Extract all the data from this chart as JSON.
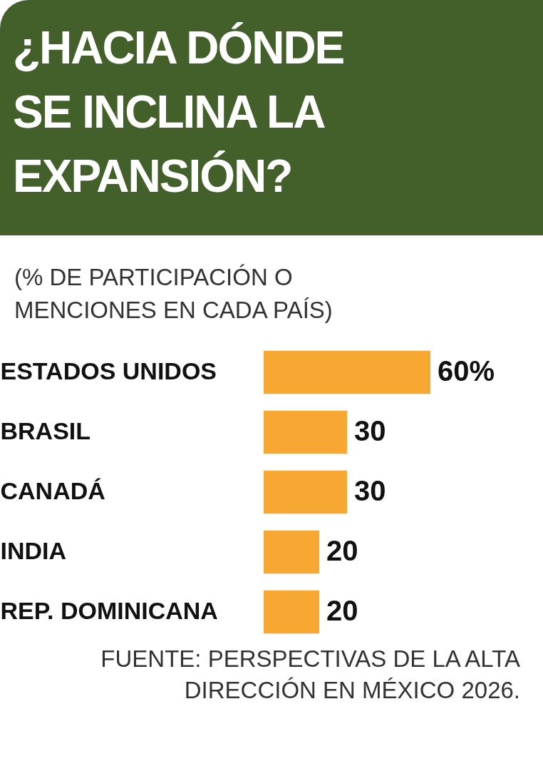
{
  "chart_data": {
    "type": "bar",
    "orientation": "horizontal",
    "title": "¿HACIA DÓNDE SE INCLINA LA EXPANSIÓN?",
    "subtitle": "(% DE PARTICIPACIÓN O MENCIONES EN CADA PAÍS)",
    "categories": [
      "ESTADOS UNIDOS",
      "BRASIL",
      "CANADÁ",
      "INDIA",
      "REP. DOMINICANA"
    ],
    "values": [
      60,
      30,
      30,
      20,
      20
    ],
    "value_labels": [
      "60%",
      "30",
      "30",
      "20",
      "20"
    ],
    "color": "#f7a833",
    "annotations": [
      "FUENTE: PERSPECTIVAS DE LA ALTA DIRECCIÓN EN MÉXICO 2026."
    ]
  }
}
